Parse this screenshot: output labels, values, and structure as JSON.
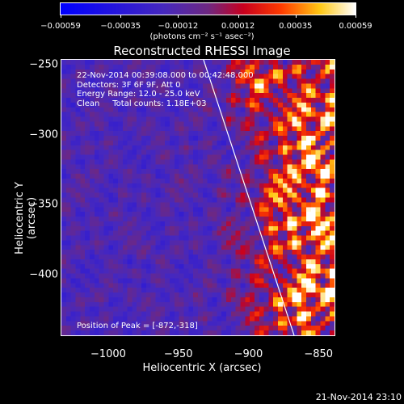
{
  "colorbar": {
    "ticks": [
      "−0.00059",
      "−0.00035",
      "−0.00012",
      "0.00012",
      "0.00035",
      "0.00059"
    ],
    "tick_values": [
      -0.00059,
      -0.00035,
      -0.00012,
      0.00012,
      0.00035,
      0.00059
    ],
    "range": [
      -0.00059,
      0.00059
    ],
    "units": "(photons cm⁻² s⁻¹ asec⁻²)"
  },
  "title": "Reconstructed RHESSI Image",
  "info": {
    "time": "22-Nov-2014 00:39:08.000 to 00:42:48.000",
    "detectors": "Detectors: 3F 6F 9F, Att 0",
    "energy": "Energy Range: 12.0 - 25.0 keV",
    "clean": "Clean     Total counts: 1.18E+03"
  },
  "peak": "Position of Peak = [-872,-318]",
  "axes": {
    "xlabel": "Heliocentric X (arcsec)",
    "ylabel": "Heliocentric Y (arcsec)",
    "xticks": [
      "−1000",
      "−950",
      "−900",
      "−850"
    ],
    "xtick_values": [
      -1000,
      -950,
      -900,
      -850
    ],
    "yticks": [
      "−250",
      "−300",
      "−350",
      "−400"
    ],
    "ytick_values": [
      -250,
      -300,
      -350,
      -400
    ],
    "xlim": [
      -1034,
      -838
    ],
    "ylim": [
      -444,
      -246
    ]
  },
  "limb": {
    "from": [
      -932,
      -246
    ],
    "to": [
      -867,
      -444
    ]
  },
  "timestamp": "21-Nov-2014 23:10"
}
